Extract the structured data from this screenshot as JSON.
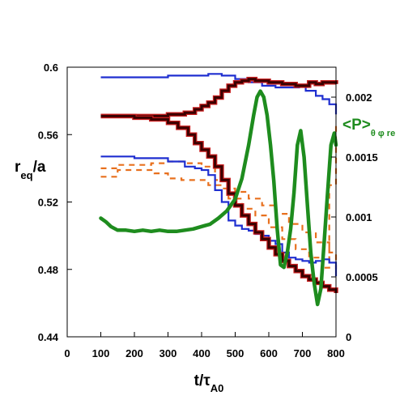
{
  "chart_data": {
    "type": "line",
    "title": "",
    "xlabel": {
      "main": "t/τ",
      "sub": "A0"
    },
    "ylabel_left": {
      "main": "r",
      "sub": "eq",
      "tail": "/a"
    },
    "ylabel_right": {
      "main": "<P>",
      "sub": "θ φ re"
    },
    "xlim": [
      0,
      800
    ],
    "ylim_left": [
      0.44,
      0.6
    ],
    "ylim_right": [
      0,
      0.00225
    ],
    "x_ticks": [
      "0",
      "100",
      "200",
      "300",
      "400",
      "500",
      "600",
      "700",
      "800"
    ],
    "y_ticks_left": [
      "0.44",
      "0.48",
      "0.52",
      "0.56",
      "0.6"
    ],
    "y_ticks_right": [
      "0",
      "0.0005",
      "0.001",
      "0.0015",
      "0.002"
    ],
    "grid": false,
    "legend": "none",
    "colors": {
      "blue": "#1f2fd0",
      "dark_red": "#3a0000",
      "red_edge": "#c81e1e",
      "orange": "#e8701e",
      "green": "#1e8c1e",
      "right_axis_label": "#1e8c1e"
    },
    "series": [
      {
        "axis": "left",
        "style": "blue-line",
        "x": [
          100,
          200,
          300,
          350,
          420,
          460,
          500,
          540,
          580,
          620,
          660,
          690,
          710,
          740,
          760,
          780,
          800
        ],
        "y": [
          0.594,
          0.594,
          0.595,
          0.595,
          0.596,
          0.595,
          0.593,
          0.591,
          0.589,
          0.588,
          0.588,
          0.589,
          0.586,
          0.583,
          0.581,
          0.578,
          0.572
        ]
      },
      {
        "axis": "left",
        "style": "blue-line",
        "x": [
          100,
          150,
          200,
          250,
          300,
          350,
          380,
          400,
          420,
          440,
          460,
          480,
          500,
          520,
          540,
          560,
          580,
          600,
          620,
          640,
          660,
          680,
          700,
          720,
          740,
          760,
          780,
          800
        ],
        "y": [
          0.547,
          0.547,
          0.546,
          0.546,
          0.544,
          0.541,
          0.54,
          0.539,
          0.536,
          0.527,
          0.52,
          0.509,
          0.506,
          0.504,
          0.503,
          0.501,
          0.5,
          0.497,
          0.495,
          0.49,
          0.487,
          0.486,
          0.485,
          0.484,
          0.485,
          0.486,
          0.484,
          0.476
        ]
      },
      {
        "axis": "left",
        "style": "dark-thick",
        "x": [
          100,
          200,
          300,
          350,
          380,
          400,
          420,
          440,
          460,
          480,
          500,
          520,
          540,
          560,
          580,
          600,
          620,
          640,
          660,
          680,
          700,
          720,
          740,
          760,
          780,
          800
        ],
        "y": [
          0.571,
          0.571,
          0.572,
          0.573,
          0.575,
          0.577,
          0.579,
          0.582,
          0.586,
          0.589,
          0.591,
          0.592,
          0.593,
          0.592,
          0.592,
          0.591,
          0.591,
          0.59,
          0.59,
          0.589,
          0.589,
          0.591,
          0.59,
          0.591,
          0.591,
          0.59
        ]
      },
      {
        "axis": "left",
        "style": "dark-thick",
        "x": [
          100,
          150,
          200,
          250,
          300,
          330,
          360,
          380,
          400,
          420,
          440,
          460,
          480,
          500,
          520,
          540,
          560,
          580,
          600,
          620,
          640,
          660,
          680,
          700,
          720,
          740,
          760,
          780,
          800
        ],
        "y": [
          0.571,
          0.571,
          0.57,
          0.569,
          0.567,
          0.564,
          0.56,
          0.555,
          0.551,
          0.547,
          0.541,
          0.533,
          0.525,
          0.518,
          0.512,
          0.507,
          0.502,
          0.498,
          0.493,
          0.489,
          0.485,
          0.482,
          0.479,
          0.476,
          0.474,
          0.472,
          0.47,
          0.468,
          0.466
        ]
      },
      {
        "axis": "left",
        "style": "orange-dash",
        "x": [
          100,
          150,
          200,
          250,
          300,
          350,
          400,
          440,
          480,
          520,
          560,
          600,
          640,
          680,
          720,
          760,
          780,
          800
        ],
        "y": [
          0.54,
          0.542,
          0.542,
          0.543,
          0.544,
          0.543,
          0.541,
          0.533,
          0.522,
          0.516,
          0.512,
          0.505,
          0.498,
          0.492,
          0.487,
          0.481,
          0.53,
          0.565
        ]
      },
      {
        "axis": "left",
        "style": "orange-dash",
        "x": [
          100,
          150,
          180,
          220,
          260,
          300,
          340,
          380,
          420,
          460,
          500,
          540,
          580,
          620,
          660,
          700,
          740,
          780,
          800
        ],
        "y": [
          0.535,
          0.539,
          0.539,
          0.539,
          0.537,
          0.534,
          0.533,
          0.533,
          0.53,
          0.528,
          0.526,
          0.522,
          0.518,
          0.513,
          0.507,
          0.502,
          0.496,
          0.49,
          0.48
        ]
      },
      {
        "axis": "right",
        "style": "green-thick",
        "x": [
          100,
          115,
          130,
          150,
          175,
          200,
          225,
          250,
          275,
          300,
          325,
          350,
          375,
          400,
          425,
          450,
          475,
          500,
          520,
          540,
          555,
          565,
          575,
          585,
          595,
          605,
          615,
          625,
          635,
          645,
          655,
          665,
          675,
          685,
          695,
          705,
          715,
          725,
          735,
          745,
          755,
          765,
          775,
          785,
          795,
          800
        ],
        "y": [
          0.00099,
          0.00096,
          0.00092,
          0.00089,
          0.00089,
          0.00088,
          0.00089,
          0.00088,
          0.00089,
          0.00088,
          0.00088,
          0.00089,
          0.0009,
          0.00092,
          0.00094,
          0.00099,
          0.00105,
          0.00115,
          0.00132,
          0.0016,
          0.00185,
          0.002,
          0.00205,
          0.002,
          0.00185,
          0.0016,
          0.0013,
          0.0009,
          0.0006,
          0.00058,
          0.0007,
          0.0009,
          0.0012,
          0.0016,
          0.00172,
          0.0015,
          0.0011,
          0.0007,
          0.00045,
          0.00027,
          0.0004,
          0.0008,
          0.0012,
          0.0016,
          0.0017,
          0.0016
        ]
      }
    ]
  }
}
